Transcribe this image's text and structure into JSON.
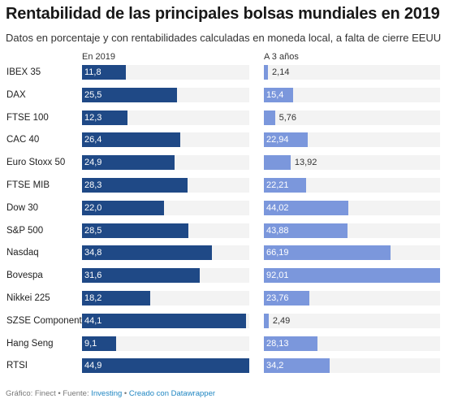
{
  "title": "Rentabilidad de las principales bolsas mundiales en 2019",
  "subtitle": "Datos en porcentaje y con rentabilidades calculadas en moneda local, a falta de cierre EEUU",
  "footer": {
    "prefix": "Gráfico: Finect • Fuente: ",
    "source": "Investing",
    "separator": " • ",
    "credit": "Creado con Datawrapper"
  },
  "colors": {
    "col1": "#1f4986",
    "col2": "#7b97dc",
    "track": "#f3f3f3"
  },
  "chart_data": {
    "type": "bar",
    "orientation": "horizontal",
    "categories": [
      "IBEX 35",
      "DAX",
      "FTSE 100",
      "CAC 40",
      "Euro Stoxx 50",
      "FTSE MIB",
      "Dow 30",
      "S&P 500",
      "Nasdaq",
      "Bovespa",
      "Nikkei 225",
      "SZSE Component",
      "Hang Seng",
      "RTSI"
    ],
    "series": [
      {
        "name": "En 2019",
        "values": [
          11.8,
          25.5,
          12.3,
          26.4,
          24.9,
          28.3,
          22.0,
          28.5,
          34.8,
          31.6,
          18.2,
          44.1,
          9.1,
          44.9
        ],
        "labels": [
          "11,8",
          "25,5",
          "12,3",
          "26,4",
          "24,9",
          "28,3",
          "22,0",
          "28,5",
          "34,8",
          "31,6",
          "18,2",
          "44,1",
          "9,1",
          "44,9"
        ]
      },
      {
        "name": "A 3 años",
        "values": [
          2.14,
          15.4,
          5.76,
          22.94,
          13.92,
          22.21,
          44.02,
          43.88,
          66.19,
          92.01,
          23.76,
          2.49,
          28.13,
          34.2
        ],
        "labels": [
          "2,14",
          "15,4",
          "5,76",
          "22,94",
          "13,92",
          "22,21",
          "44,02",
          "43,88",
          "66,19",
          "92,01",
          "23,76",
          "2,49",
          "28,13",
          "34,2"
        ]
      }
    ]
  }
}
